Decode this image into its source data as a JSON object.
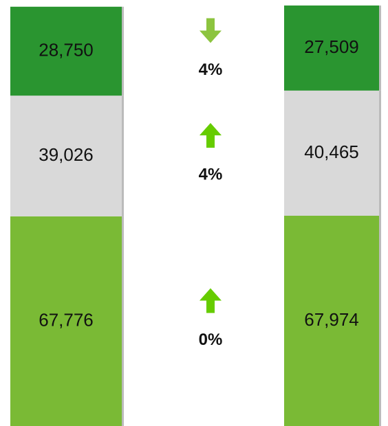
{
  "chart_data": {
    "type": "bar",
    "stacked": true,
    "categories": [
      null,
      null
    ],
    "series": [
      {
        "color": "#2a9530",
        "values": [
          28750,
          27509
        ],
        "value_labels": [
          "28,750",
          "27,509"
        ]
      },
      {
        "color": "#d9d9d9",
        "values": [
          39026,
          40465
        ],
        "value_labels": [
          "39,026",
          "40,465"
        ]
      },
      {
        "color": "#7aba35",
        "values": [
          67776,
          67974
        ],
        "value_labels": [
          "67,776",
          "67,974"
        ]
      }
    ],
    "changes": {
      "values": [
        4,
        4,
        0
      ],
      "value_labels": [
        "4%",
        "4%",
        "0%"
      ],
      "directions": [
        "down",
        "up",
        "up"
      ],
      "colors": [
        "#8cc43f",
        "#66cc00",
        "#66cc00"
      ]
    }
  }
}
